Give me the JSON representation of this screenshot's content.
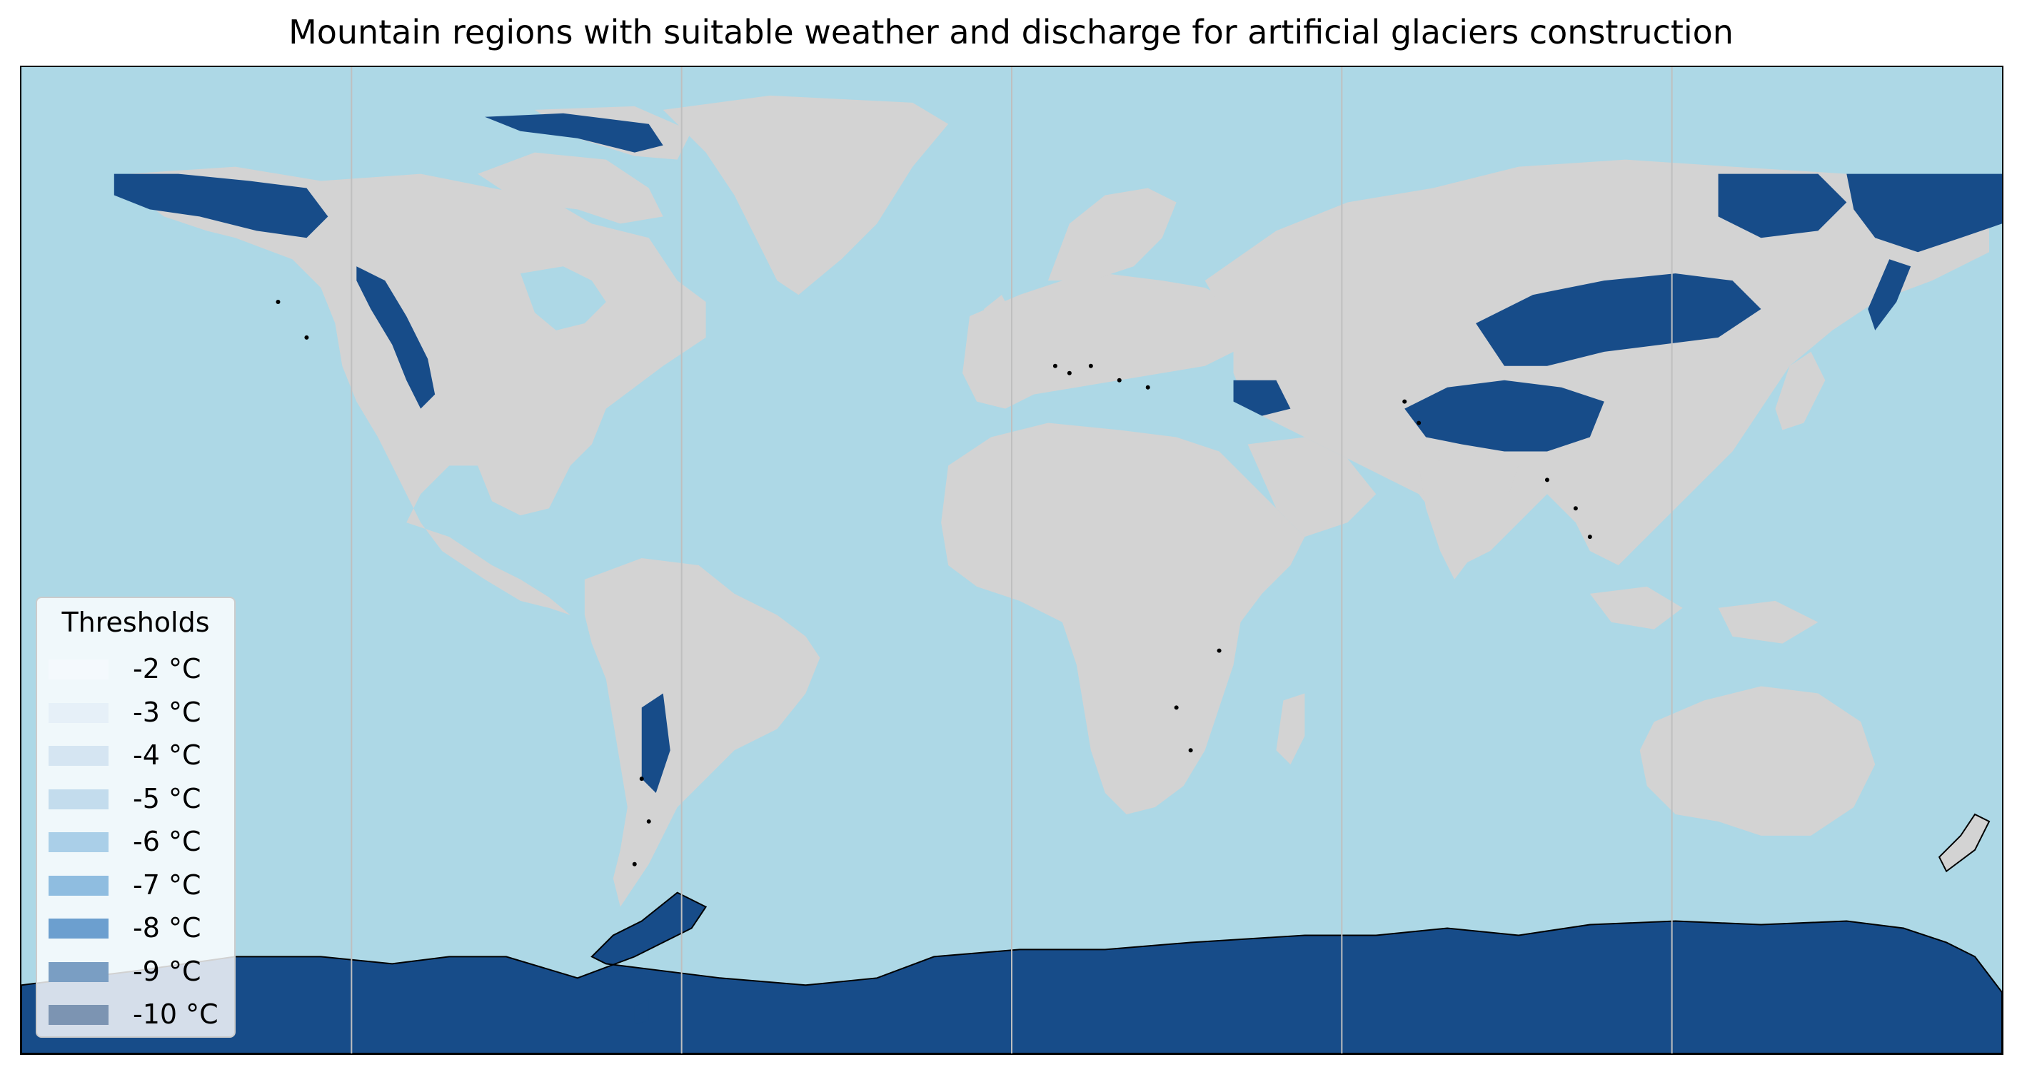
{
  "title": "Mountain regions with suitable weather and discharge for artificial glaciers construction",
  "colors": {
    "ocean": "#add8e6",
    "land": "#d3d3d3",
    "suitable": "#174c89",
    "antarctica": "#174c89",
    "borders": "#000000",
    "gridlines": "#bfbfbf"
  },
  "legend": {
    "title": "Thresholds",
    "items": [
      {
        "label": "-2 °C",
        "color": "#f4f9fd"
      },
      {
        "label": "-3 °C",
        "color": "#e6f0f8"
      },
      {
        "label": "-4 °C",
        "color": "#d5e5f2"
      },
      {
        "label": "-5 °C",
        "color": "#c3dced"
      },
      {
        "label": "-6 °C",
        "color": "#aacfe8"
      },
      {
        "label": "-7 °C",
        "color": "#8fbde0"
      },
      {
        "label": "-8 °C",
        "color": "#6c9fcf"
      },
      {
        "label": "-9 °C",
        "color": "#7a9ec3"
      },
      {
        "label": "-10 °C",
        "color": "#7c94b2"
      }
    ]
  }
}
